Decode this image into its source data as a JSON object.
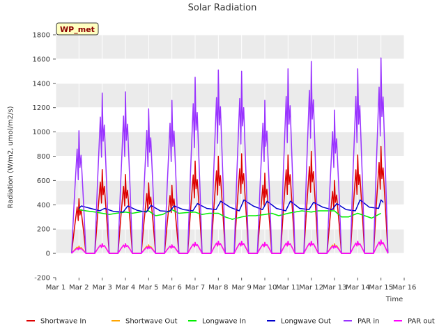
{
  "chart_data": {
    "type": "line",
    "title": "Solar Radiation",
    "xlabel": "Time",
    "ylabel": "Radiation (W/m2, umol/m2/s)",
    "badge": "WP_met",
    "xlim": [
      1,
      16
    ],
    "ylim": [
      -200,
      1800
    ],
    "x_ticks": [
      {
        "value": 1,
        "label": "Mar 1"
      },
      {
        "value": 2,
        "label": "Mar 2"
      },
      {
        "value": 3,
        "label": "Mar 3"
      },
      {
        "value": 4,
        "label": "Mar 4"
      },
      {
        "value": 5,
        "label": "Mar 5"
      },
      {
        "value": 6,
        "label": "Mar 6"
      },
      {
        "value": 7,
        "label": "Mar 7"
      },
      {
        "value": 8,
        "label": "Mar 8"
      },
      {
        "value": 9,
        "label": "Mar 9"
      },
      {
        "value": 10,
        "label": "Mar 10"
      },
      {
        "value": 11,
        "label": "Mar 11"
      },
      {
        "value": 12,
        "label": "Mar 12"
      },
      {
        "value": 13,
        "label": "Mar 13"
      },
      {
        "value": 14,
        "label": "Mar 14"
      },
      {
        "value": 15,
        "label": "Mar 15"
      },
      {
        "value": 16,
        "label": "Mar 16"
      }
    ],
    "y_ticks": [
      {
        "value": -200,
        "label": "-200"
      },
      {
        "value": 0,
        "label": "0"
      },
      {
        "value": 200,
        "label": "200"
      },
      {
        "value": 400,
        "label": "400"
      },
      {
        "value": 600,
        "label": "600"
      },
      {
        "value": 800,
        "label": "800"
      },
      {
        "value": 1000,
        "label": "1000"
      },
      {
        "value": 1200,
        "label": "1200"
      },
      {
        "value": 1400,
        "label": "1400"
      },
      {
        "value": 1600,
        "label": "1600"
      },
      {
        "value": 1800,
        "label": "1800"
      }
    ],
    "grid": true,
    "legend_position": "bottom",
    "series": [
      {
        "name": "Shortwave In",
        "color": "#dd0000",
        "kind": "peaks",
        "base": 0,
        "peaks": [
          [
            2.0,
            450
          ],
          [
            3.0,
            690
          ],
          [
            4.0,
            650
          ],
          [
            5.0,
            580
          ],
          [
            6.0,
            560
          ],
          [
            7.0,
            760
          ],
          [
            8.0,
            800
          ],
          [
            9.0,
            820
          ],
          [
            10.0,
            660
          ],
          [
            11.0,
            810
          ],
          [
            12.0,
            840
          ],
          [
            13.0,
            600
          ],
          [
            14.0,
            810
          ],
          [
            15.0,
            880
          ]
        ]
      },
      {
        "name": "Shortwave Out",
        "color": "#ffa500",
        "kind": "peaks",
        "base": 0,
        "peaks": [
          [
            2.0,
            60
          ],
          [
            3.0,
            80
          ],
          [
            4.0,
            80
          ],
          [
            5.0,
            70
          ],
          [
            6.0,
            70
          ],
          [
            7.0,
            90
          ],
          [
            8.0,
            100
          ],
          [
            9.0,
            100
          ],
          [
            10.0,
            90
          ],
          [
            11.0,
            100
          ],
          [
            12.0,
            100
          ],
          [
            13.0,
            80
          ],
          [
            14.0,
            100
          ],
          [
            15.0,
            110
          ]
        ]
      },
      {
        "name": "Longwave In",
        "color": "#00ee00",
        "kind": "points",
        "points": [
          [
            2.0,
            360
          ],
          [
            2.3,
            350
          ],
          [
            2.7,
            340
          ],
          [
            3.0,
            330
          ],
          [
            3.3,
            320
          ],
          [
            3.6,
            330
          ],
          [
            4.0,
            340
          ],
          [
            4.3,
            330
          ],
          [
            4.6,
            340
          ],
          [
            5.0,
            350
          ],
          [
            5.3,
            310
          ],
          [
            5.6,
            320
          ],
          [
            6.0,
            360
          ],
          [
            6.3,
            330
          ],
          [
            6.6,
            335
          ],
          [
            7.0,
            340
          ],
          [
            7.3,
            320
          ],
          [
            7.6,
            330
          ],
          [
            8.0,
            330
          ],
          [
            8.3,
            300
          ],
          [
            8.6,
            280
          ],
          [
            9.0,
            300
          ],
          [
            9.3,
            310
          ],
          [
            9.6,
            310
          ],
          [
            10.0,
            320
          ],
          [
            10.3,
            330
          ],
          [
            10.6,
            310
          ],
          [
            11.0,
            330
          ],
          [
            11.3,
            340
          ],
          [
            11.6,
            350
          ],
          [
            12.0,
            340
          ],
          [
            12.3,
            350
          ],
          [
            12.6,
            350
          ],
          [
            13.0,
            350
          ],
          [
            13.3,
            300
          ],
          [
            13.6,
            300
          ],
          [
            14.0,
            330
          ],
          [
            14.3,
            310
          ],
          [
            14.6,
            290
          ],
          [
            15.0,
            330
          ]
        ]
      },
      {
        "name": "Longwave Out",
        "color": "#0000cc",
        "kind": "points",
        "points": [
          [
            2.0,
            370
          ],
          [
            2.1,
            390
          ],
          [
            2.5,
            370
          ],
          [
            2.9,
            350
          ],
          [
            3.1,
            370
          ],
          [
            3.5,
            345
          ],
          [
            3.9,
            340
          ],
          [
            4.1,
            390
          ],
          [
            4.5,
            355
          ],
          [
            4.9,
            340
          ],
          [
            5.1,
            395
          ],
          [
            5.5,
            350
          ],
          [
            5.9,
            345
          ],
          [
            6.1,
            390
          ],
          [
            6.5,
            360
          ],
          [
            6.9,
            350
          ],
          [
            7.1,
            410
          ],
          [
            7.5,
            370
          ],
          [
            7.9,
            360
          ],
          [
            8.1,
            430
          ],
          [
            8.5,
            380
          ],
          [
            8.9,
            350
          ],
          [
            9.1,
            440
          ],
          [
            9.5,
            390
          ],
          [
            9.9,
            360
          ],
          [
            10.1,
            430
          ],
          [
            10.5,
            370
          ],
          [
            10.9,
            350
          ],
          [
            11.1,
            430
          ],
          [
            11.5,
            370
          ],
          [
            11.9,
            360
          ],
          [
            12.1,
            420
          ],
          [
            12.5,
            380
          ],
          [
            12.9,
            360
          ],
          [
            13.1,
            410
          ],
          [
            13.5,
            360
          ],
          [
            13.9,
            350
          ],
          [
            14.1,
            440
          ],
          [
            14.5,
            380
          ],
          [
            14.9,
            370
          ],
          [
            15.0,
            440
          ],
          [
            15.1,
            420
          ]
        ]
      },
      {
        "name": "PAR in",
        "color": "#9933ff",
        "kind": "peaks",
        "base": 0,
        "peaks": [
          [
            2.0,
            1010
          ],
          [
            3.0,
            1320
          ],
          [
            4.0,
            1330
          ],
          [
            5.0,
            1190
          ],
          [
            6.0,
            1260
          ],
          [
            7.0,
            1450
          ],
          [
            8.0,
            1510
          ],
          [
            9.0,
            1500
          ],
          [
            10.0,
            1260
          ],
          [
            11.0,
            1520
          ],
          [
            12.0,
            1580
          ],
          [
            13.0,
            1180
          ],
          [
            14.0,
            1520
          ],
          [
            15.0,
            1610
          ]
        ]
      },
      {
        "name": "PAR out",
        "color": "#ff00ff",
        "kind": "peaks",
        "base": 0,
        "peaks": [
          [
            2.0,
            50
          ],
          [
            3.0,
            80
          ],
          [
            4.0,
            80
          ],
          [
            5.0,
            60
          ],
          [
            6.0,
            70
          ],
          [
            7.0,
            90
          ],
          [
            8.0,
            100
          ],
          [
            9.0,
            100
          ],
          [
            10.0,
            90
          ],
          [
            11.0,
            100
          ],
          [
            12.0,
            100
          ],
          [
            13.0,
            70
          ],
          [
            14.0,
            100
          ],
          [
            15.0,
            110
          ]
        ]
      }
    ]
  }
}
